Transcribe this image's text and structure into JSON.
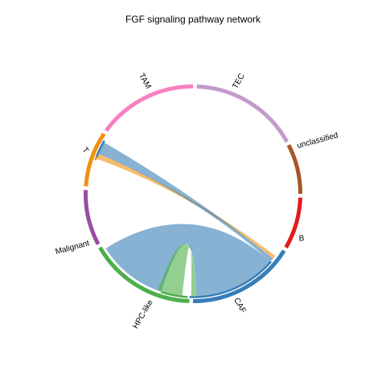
{
  "chart_data": {
    "type": "chord",
    "title": "FGF signaling pathway network",
    "sectors": [
      {
        "name": "TEC",
        "color": "#C29BCB"
      },
      {
        "name": "unclassified",
        "color": "#A65628"
      },
      {
        "name": "B",
        "color": "#E41A1C"
      },
      {
        "name": "CAF",
        "color": "#377EB8"
      },
      {
        "name": "HPC-like",
        "color": "#4DAF4A"
      },
      {
        "name": "Malignant",
        "color": "#984EA3"
      },
      {
        "name": "T",
        "color": "#F0900E"
      },
      {
        "name": "TAM",
        "color": "#F781BF"
      }
    ],
    "links": [
      {
        "source": "T",
        "target": "CAF",
        "color": "#F0900E"
      },
      {
        "source": "CAF",
        "target": "T",
        "color": "#377EB8"
      },
      {
        "source": "CAF",
        "target": "HPC-like",
        "color": "#377EB8"
      },
      {
        "source": "HPC-like",
        "target": "CAF",
        "color": "#4DAF4A"
      }
    ]
  }
}
